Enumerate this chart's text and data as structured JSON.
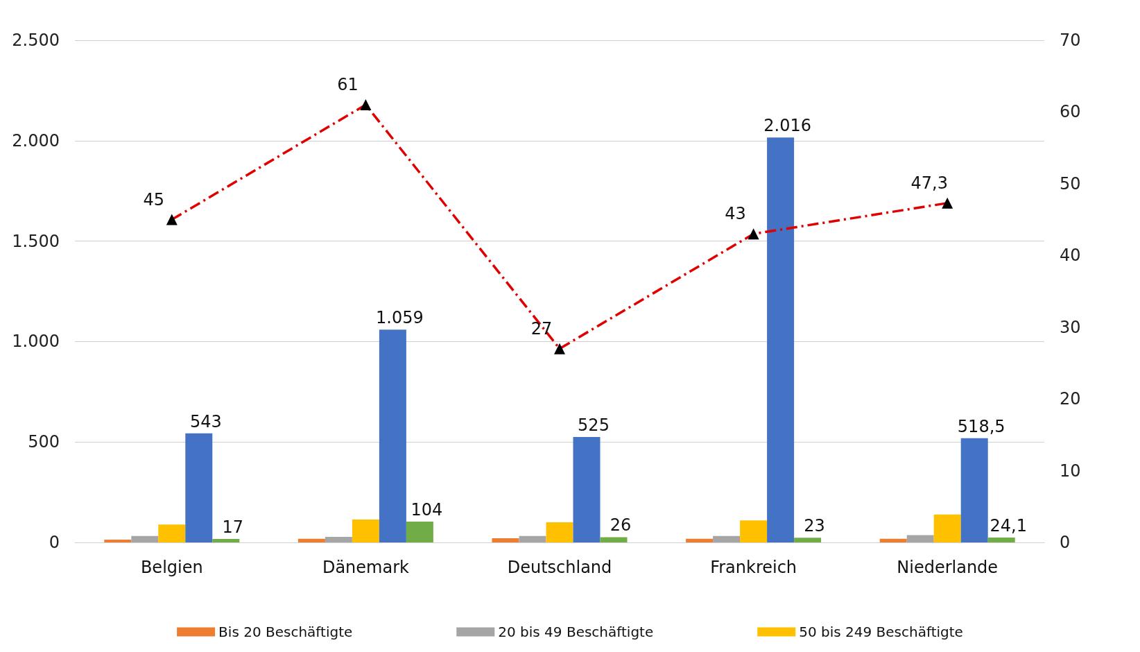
{
  "chart_data": {
    "type": "bar",
    "categories": [
      "Belgien",
      "Dänemark",
      "Deutschland",
      "Frankreich",
      "Niederlande"
    ],
    "series": [
      {
        "name": "Bis 20 Beschäftigte",
        "color": "#ed7d31",
        "values": [
          14,
          18,
          21,
          18,
          18
        ]
      },
      {
        "name": "20 bis 49 Beschäftigte",
        "color": "#a5a5a5",
        "values": [
          32,
          28,
          32,
          32,
          36
        ]
      },
      {
        "name": "50 bis 249 Beschäftigte",
        "color": "#ffc000",
        "values": [
          89,
          114,
          100,
          110,
          139
        ]
      },
      {
        "color": "#4472c4",
        "values": [
          543,
          1059,
          525,
          2016,
          518.5
        ],
        "value_labels": [
          "543",
          "1.059",
          "525",
          "2.016",
          "518,5"
        ]
      },
      {
        "color": "#70ad47",
        "values": [
          17,
          104,
          26,
          23,
          24.1
        ],
        "value_labels": [
          "17",
          "104",
          "26",
          "23",
          "24,1"
        ]
      },
      {
        "type": "line",
        "axis": "y2",
        "color": "#e00000",
        "marker": "triangle",
        "line_style": "dashed",
        "values": [
          45,
          61,
          27,
          43,
          47.3
        ],
        "value_labels": [
          "45",
          "61",
          "27",
          "43",
          "47,3"
        ]
      }
    ],
    "ylim": [
      0,
      2500
    ],
    "yticks": [
      0,
      500,
      {
        "value": 1000,
        "label": "1.000"
      },
      {
        "value": 1500,
        "label": "1.500"
      },
      {
        "value": 2000,
        "label": "2.000"
      },
      {
        "value": 2500,
        "label": "2.500"
      }
    ],
    "y2lim": [
      0,
      70
    ],
    "y2ticks": [
      0,
      10,
      20,
      30,
      40,
      50,
      60,
      70
    ],
    "grid": "y",
    "legend": "bottom"
  }
}
